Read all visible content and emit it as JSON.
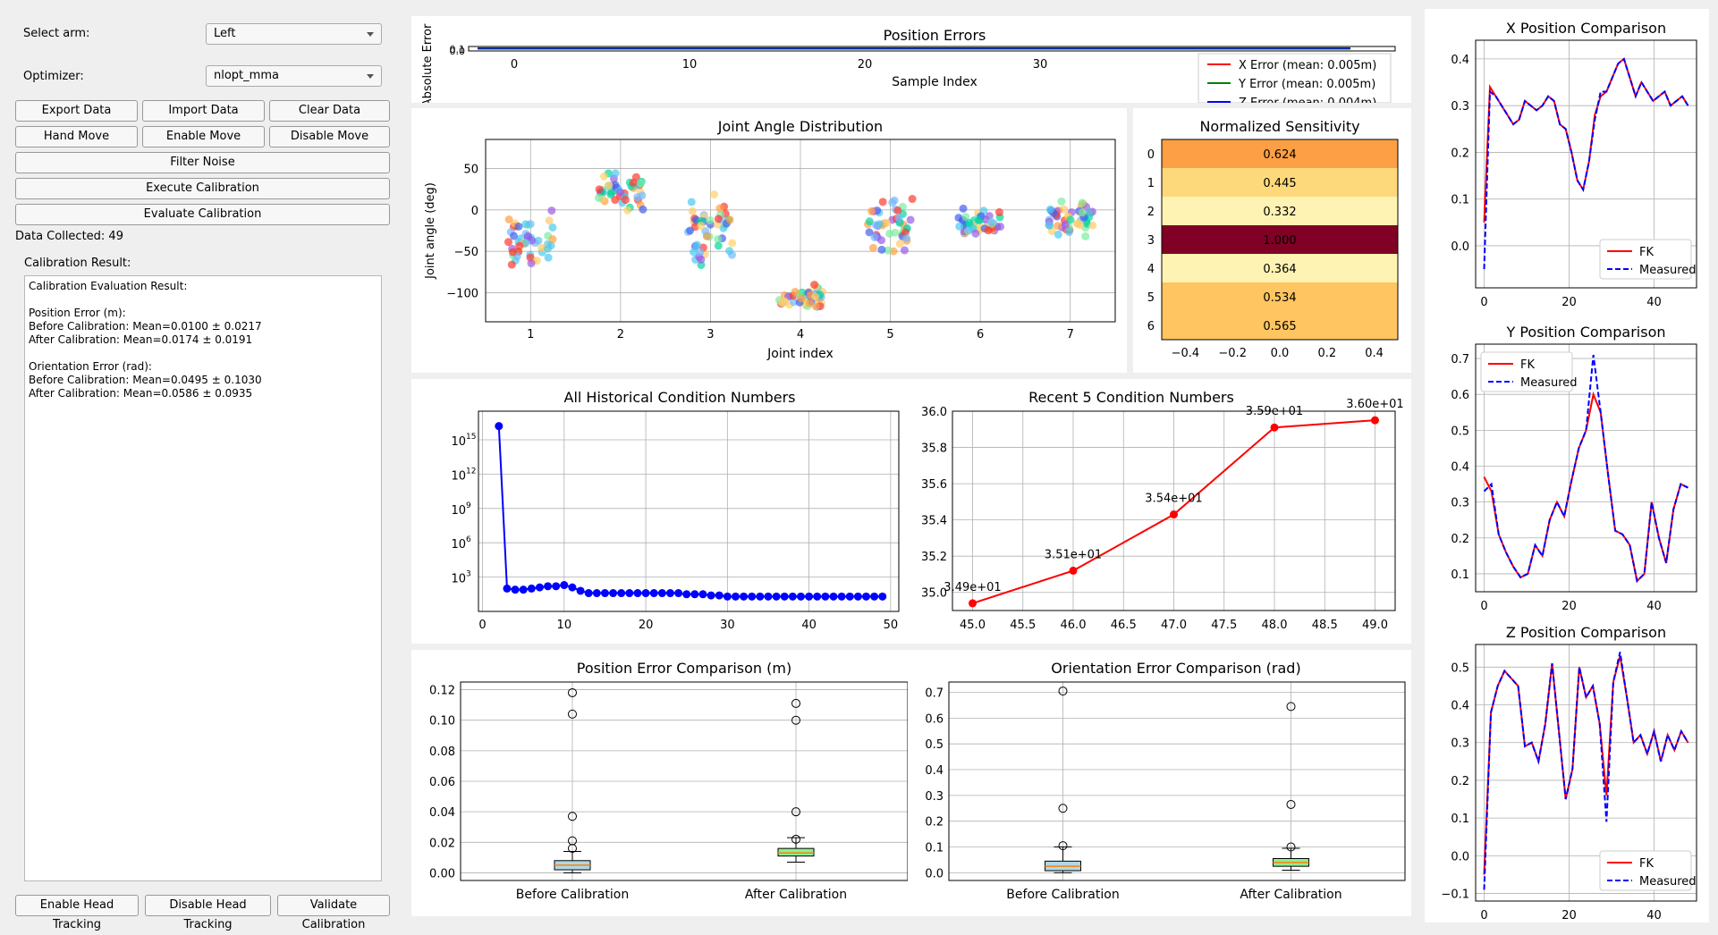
{
  "controls": {
    "select_arm_label": "Select arm:",
    "select_arm_value": "Left",
    "optimizer_label": "Optimizer:",
    "optimizer_value": "nlopt_mma",
    "buttons": {
      "export": "Export Data",
      "import": "Import Data",
      "clear": "Clear Data",
      "hand_move": "Hand Move",
      "enable_move": "Enable Move",
      "disable_move": "Disable Move",
      "filter_noise": "Filter Noise",
      "execute_calibration": "Execute Calibration",
      "evaluate_calibration": "Evaluate Calibration",
      "enable_head_tracking": "Enable Head Tracking",
      "disable_head_tracking": "Disable Head Tracking",
      "validate_calibration": "Validate Calibration"
    },
    "data_collected": "Data Collected: 49",
    "calibration_result_label": "Calibration Result:",
    "calibration_result_lines": [
      "Calibration Evaluation Result:",
      "",
      "Position Error (m):",
      "Before Calibration: Mean=0.0100 ± 0.0217",
      "After Calibration: Mean=0.0174 ± 0.0191",
      "",
      "Orientation Error (rad):",
      "Before Calibration: Mean=0.0495 ± 0.1030",
      "After Calibration: Mean=0.0586 ± 0.0935"
    ]
  },
  "colors": {
    "red": "#ff0000",
    "blue": "#0000ff",
    "green": "#008000",
    "box_before": "#add8e6",
    "box_after": "#90ee90"
  },
  "chart_data": [
    {
      "id": "position_errors",
      "type": "line",
      "title": "Position Errors",
      "xlabel": "Sample Index",
      "ylabel": "Absolute Error",
      "xticks": [
        "0",
        "10",
        "20",
        "30"
      ],
      "yticks": [
        "0.0",
        "0.1"
      ],
      "legend": [
        "X Error (mean: 0.005m)",
        "Y Error (mean: 0.005m)",
        "Z Error (mean: 0.004m)"
      ],
      "legend_position": "bottom-right"
    },
    {
      "id": "joint_angle_distribution",
      "type": "scatter",
      "title": "Joint Angle Distribution",
      "xlabel": "Joint index",
      "ylabel": "Joint angle (deg)",
      "x": [
        1,
        2,
        3,
        4,
        5,
        6,
        7
      ],
      "centers": [
        -35,
        25,
        -25,
        -105,
        -15,
        -15,
        -10
      ],
      "spread": [
        30,
        18,
        35,
        12,
        30,
        15,
        18
      ],
      "xlim": [
        0.5,
        7.5
      ],
      "ylim": [
        -135,
        85
      ],
      "yticks": [
        50,
        0,
        -50,
        -100
      ]
    },
    {
      "id": "normalized_sensitivity",
      "type": "heatmap",
      "title": "Normalized Sensitivity",
      "rows": [
        "0",
        "1",
        "2",
        "3",
        "4",
        "5",
        "6"
      ],
      "values": [
        "0.624",
        "0.445",
        "0.332",
        "1.000",
        "0.364",
        "0.534",
        "0.565"
      ],
      "xticks": [
        "−0.4",
        "−0.2",
        "0.0",
        "0.2",
        "0.4"
      ]
    },
    {
      "id": "historical_condition_numbers",
      "type": "line",
      "title": "All Historical Condition Numbers",
      "x": [
        2,
        3,
        4,
        5,
        6,
        7,
        8,
        9,
        10,
        11,
        12,
        13,
        14,
        15,
        16,
        17,
        18,
        19,
        20,
        21,
        22,
        23,
        24,
        25,
        26,
        27,
        28,
        29,
        30,
        31,
        32,
        33,
        34,
        35,
        36,
        37,
        38,
        39,
        40,
        41,
        42,
        43,
        44,
        45,
        46,
        47,
        48,
        49
      ],
      "log10_y": [
        16.2,
        2.0,
        1.9,
        1.9,
        2.0,
        2.1,
        2.2,
        2.2,
        2.3,
        2.1,
        1.8,
        1.6,
        1.6,
        1.6,
        1.6,
        1.6,
        1.6,
        1.6,
        1.6,
        1.6,
        1.6,
        1.6,
        1.6,
        1.5,
        1.5,
        1.5,
        1.4,
        1.4,
        1.3,
        1.3,
        1.3,
        1.3,
        1.3,
        1.3,
        1.3,
        1.3,
        1.3,
        1.3,
        1.3,
        1.3,
        1.3,
        1.3,
        1.3,
        1.3,
        1.3,
        1.3,
        1.3,
        1.3
      ],
      "xlim": [
        -0.5,
        51
      ],
      "ylim_log10": [
        0,
        17.5
      ],
      "xticks": [
        "0",
        "10",
        "20",
        "30",
        "40",
        "50"
      ],
      "yticks": [
        "10",
        "10",
        "10",
        "10",
        "10"
      ],
      "ytick_exponents": [
        "3",
        "6",
        "9",
        "12",
        "15"
      ]
    },
    {
      "id": "recent_condition_numbers",
      "type": "line",
      "title": "Recent 5 Condition Numbers",
      "x": [
        45,
        46,
        47,
        48,
        49
      ],
      "y": [
        34.94,
        35.12,
        35.43,
        35.91,
        35.95
      ],
      "labels": [
        "3.49e+01",
        "3.51e+01",
        "3.54e+01",
        "3.59e+01",
        "3.60e+01"
      ],
      "xlim": [
        44.8,
        49.2
      ],
      "ylim": [
        34.9,
        36.0
      ],
      "xticks": [
        "45.0",
        "45.5",
        "46.0",
        "46.5",
        "47.0",
        "47.5",
        "48.0",
        "48.5",
        "49.0"
      ],
      "yticks": [
        "35.0",
        "35.2",
        "35.4",
        "35.6",
        "35.8",
        "36.0"
      ]
    },
    {
      "id": "position_error_comparison",
      "type": "box",
      "title": "Position Error Comparison (m)",
      "categories": [
        "Before Calibration",
        "After Calibration"
      ],
      "boxes": [
        {
          "min": 0.0,
          "q1": 0.002,
          "median": 0.005,
          "q3": 0.008,
          "max": 0.014,
          "outliers": [
            0.016,
            0.021,
            0.037,
            0.104,
            0.118
          ]
        },
        {
          "min": 0.007,
          "q1": 0.011,
          "median": 0.013,
          "q3": 0.016,
          "max": 0.023,
          "outliers": [
            0.022,
            0.04,
            0.1,
            0.111
          ]
        }
      ],
      "ylim": [
        -0.005,
        0.125
      ],
      "yticks": [
        "0.00",
        "0.02",
        "0.04",
        "0.06",
        "0.08",
        "0.10",
        "0.12"
      ]
    },
    {
      "id": "orientation_error_comparison",
      "type": "box",
      "title": "Orientation Error Comparison (rad)",
      "categories": [
        "Before Calibration",
        "After Calibration"
      ],
      "boxes": [
        {
          "min": 0.0,
          "q1": 0.008,
          "median": 0.025,
          "q3": 0.045,
          "max": 0.1,
          "outliers": [
            0.105,
            0.25,
            0.705
          ]
        },
        {
          "min": 0.01,
          "q1": 0.025,
          "median": 0.04,
          "q3": 0.055,
          "max": 0.095,
          "outliers": [
            0.1,
            0.265,
            0.645
          ]
        }
      ],
      "ylim": [
        -0.03,
        0.74
      ],
      "yticks": [
        "0.0",
        "0.1",
        "0.2",
        "0.3",
        "0.4",
        "0.5",
        "0.6",
        "0.7"
      ]
    },
    {
      "id": "x_position_comparison",
      "type": "line",
      "title": "X Position Comparison",
      "legend": [
        "FK",
        "Measured"
      ],
      "legend_position": "lower-right",
      "xlim": [
        -2,
        50
      ],
      "ylim": [
        -0.09,
        0.44
      ],
      "xticks": [
        "0",
        "20",
        "40"
      ],
      "yticks": [
        "0.0",
        "0.1",
        "0.2",
        "0.3",
        "0.4"
      ],
      "fk": [
        0.05,
        0.34,
        0.32,
        0.3,
        0.28,
        0.26,
        0.27,
        0.31,
        0.3,
        0.29,
        0.3,
        0.32,
        0.31,
        0.26,
        0.25,
        0.2,
        0.14,
        0.12,
        0.18,
        0.28,
        0.32,
        0.33,
        0.36,
        0.39,
        0.4,
        0.36,
        0.32,
        0.35,
        0.33,
        0.31,
        0.32,
        0.33,
        0.3,
        0.31,
        0.32,
        0.3
      ],
      "measured": [
        -0.05,
        0.33,
        0.32,
        0.3,
        0.28,
        0.26,
        0.27,
        0.31,
        0.3,
        0.29,
        0.3,
        0.32,
        0.31,
        0.26,
        0.25,
        0.2,
        0.14,
        0.12,
        0.18,
        0.27,
        0.33,
        0.33,
        0.36,
        0.39,
        0.4,
        0.36,
        0.32,
        0.35,
        0.33,
        0.31,
        0.32,
        0.33,
        0.3,
        0.31,
        0.32,
        0.3
      ]
    },
    {
      "id": "y_position_comparison",
      "type": "line",
      "title": "Y Position Comparison",
      "legend": [
        "FK",
        "Measured"
      ],
      "legend_position": "upper-left",
      "xlim": [
        -2,
        50
      ],
      "ylim": [
        0.05,
        0.74
      ],
      "xticks": [
        "0",
        "20",
        "40"
      ],
      "yticks": [
        "0.1",
        "0.2",
        "0.3",
        "0.4",
        "0.5",
        "0.6",
        "0.7"
      ],
      "fk": [
        0.37,
        0.33,
        0.21,
        0.16,
        0.12,
        0.09,
        0.1,
        0.18,
        0.15,
        0.25,
        0.3,
        0.26,
        0.36,
        0.45,
        0.5,
        0.6,
        0.55,
        0.38,
        0.22,
        0.21,
        0.18,
        0.08,
        0.1,
        0.3,
        0.2,
        0.13,
        0.28,
        0.35,
        0.34
      ],
      "measured": [
        0.33,
        0.35,
        0.21,
        0.16,
        0.12,
        0.09,
        0.1,
        0.18,
        0.15,
        0.25,
        0.3,
        0.26,
        0.36,
        0.45,
        0.5,
        0.71,
        0.55,
        0.38,
        0.22,
        0.21,
        0.18,
        0.08,
        0.1,
        0.3,
        0.2,
        0.13,
        0.28,
        0.35,
        0.34
      ]
    },
    {
      "id": "z_position_comparison",
      "type": "line",
      "title": "Z Position Comparison",
      "legend": [
        "FK",
        "Measured"
      ],
      "legend_position": "lower-right",
      "xlim": [
        -2,
        50
      ],
      "ylim": [
        -0.12,
        0.56
      ],
      "xticks": [
        "0",
        "20",
        "40"
      ],
      "yticks": [
        "−0.1",
        "0.0",
        "0.1",
        "0.2",
        "0.3",
        "0.4",
        "0.5"
      ],
      "fk": [
        -0.05,
        0.38,
        0.45,
        0.49,
        0.47,
        0.45,
        0.29,
        0.3,
        0.25,
        0.35,
        0.51,
        0.33,
        0.15,
        0.23,
        0.5,
        0.42,
        0.45,
        0.35,
        0.16,
        0.46,
        0.53,
        0.42,
        0.3,
        0.32,
        0.27,
        0.33,
        0.25,
        0.32,
        0.28,
        0.33,
        0.3
      ],
      "measured": [
        -0.09,
        0.38,
        0.45,
        0.49,
        0.47,
        0.45,
        0.29,
        0.3,
        0.25,
        0.35,
        0.51,
        0.33,
        0.15,
        0.23,
        0.5,
        0.42,
        0.45,
        0.35,
        0.09,
        0.46,
        0.54,
        0.42,
        0.3,
        0.32,
        0.27,
        0.33,
        0.25,
        0.32,
        0.28,
        0.33,
        0.3
      ]
    }
  ]
}
